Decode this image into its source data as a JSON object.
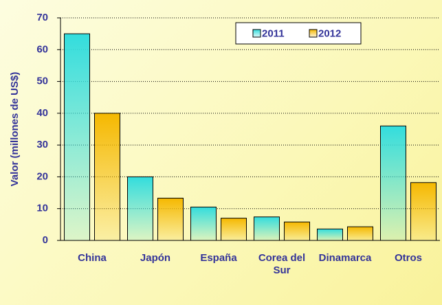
{
  "chart_data": {
    "type": "bar",
    "y_label": "Valor (millones de US$)",
    "categories": [
      "China",
      "Japón",
      "España",
      "Corea del Sur",
      "Dinamarca",
      "Otros"
    ],
    "series": [
      {
        "name": "2011",
        "color": "#33dddd",
        "values": [
          65,
          20,
          10.5,
          7.4,
          3.6,
          36
        ]
      },
      {
        "name": "2012",
        "color": "#f5b800",
        "values": [
          40,
          13.3,
          7,
          5.8,
          4.3,
          18.2
        ]
      }
    ],
    "ylim": [
      0,
      70
    ],
    "yticks": [
      0,
      10,
      20,
      30,
      40,
      50,
      60,
      70
    ],
    "grid": true,
    "legend": "top-right"
  }
}
